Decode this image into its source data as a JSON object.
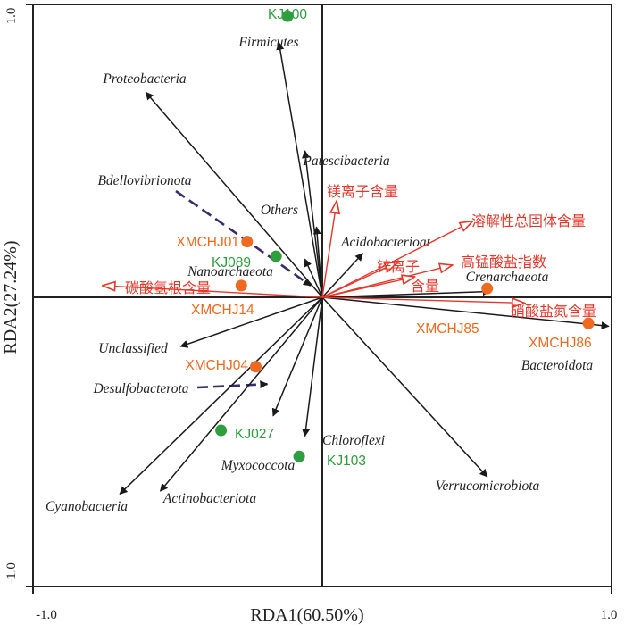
{
  "chart_data": {
    "type": "scatter",
    "subtype": "rda-biplot",
    "xlabel": "RDA1(60.50%)",
    "ylabel": "RDA2(27.24%)",
    "xlim": [
      -1.0,
      1.0
    ],
    "ylim": [
      -1.0,
      1.0
    ],
    "x_ticks": [
      "-1.0",
      "1.0"
    ],
    "y_ticks": [
      "1.0",
      "-1.0"
    ],
    "zero_lines": true,
    "colors": {
      "taxa_arrow": "#1a1a1a",
      "env_arrow": "#e8372a",
      "group_green": "#2e9e3e",
      "group_orange": "#ef6a1f",
      "dashed": "#3a2a6e"
    },
    "taxa": [
      {
        "label": "Firmicutes",
        "x": -0.15,
        "y": 0.87
      },
      {
        "label": "Proteobacteria",
        "x": -0.61,
        "y": 0.7
      },
      {
        "label": "Patescibacteria",
        "x": -0.06,
        "y": 0.5
      },
      {
        "label": "Bdellovibrionota",
        "x": -0.04,
        "y": 0.04,
        "dashed": true
      },
      {
        "label": "Others",
        "x": -0.02,
        "y": 0.24
      },
      {
        "label": "Acidobacterioat",
        "x": 0.14,
        "y": 0.15
      },
      {
        "label": "Nanoarchaeota",
        "x": -0.06,
        "y": 0.13
      },
      {
        "label": "Crenarchaeota",
        "x": 0.58,
        "y": 0.02
      },
      {
        "label": "Bacteroidota",
        "x": 0.99,
        "y": -0.1
      },
      {
        "label": "Unclassified",
        "x": -0.49,
        "y": -0.17
      },
      {
        "label": "Desulfobacterota",
        "x": -0.19,
        "y": -0.3,
        "dashed": true
      },
      {
        "label": "Chloroflexi",
        "x": -0.06,
        "y": -0.48
      },
      {
        "label": "Myxococcota",
        "x": -0.17,
        "y": -0.41
      },
      {
        "label": "Verrucomicrobiota",
        "x": 0.57,
        "y": -0.62
      },
      {
        "label": "Cyanobacteria",
        "x": -0.7,
        "y": -0.68
      },
      {
        "label": "Actinobacteriota",
        "x": -0.56,
        "y": -0.67
      }
    ],
    "environment": [
      {
        "label": "镁离子含量",
        "x": 0.05,
        "y": 0.33
      },
      {
        "label": "溶解性总固体含量",
        "x": 0.52,
        "y": 0.26
      },
      {
        "label": "锌离子",
        "x": 0.26,
        "y": 0.12
      },
      {
        "label": "高锰酸盐指数",
        "x": 0.45,
        "y": 0.11
      },
      {
        "label": "含量",
        "x": 0.32,
        "y": 0.07
      },
      {
        "label": "硝酸盐氮含量",
        "x": 0.7,
        "y": -0.02
      },
      {
        "label": "碳酸氢根含量",
        "x": -0.76,
        "y": 0.04
      }
    ],
    "samples": [
      {
        "label": "KJ100",
        "x": -0.12,
        "y": 0.96,
        "group": "green"
      },
      {
        "label": "KJ089",
        "x": -0.16,
        "y": 0.14,
        "group": "green"
      },
      {
        "label": "KJ027",
        "x": -0.35,
        "y": -0.46,
        "group": "green"
      },
      {
        "label": "KJ103",
        "x": -0.08,
        "y": -0.55,
        "group": "green"
      },
      {
        "label": "XMCHJ01",
        "x": -0.26,
        "y": 0.19,
        "group": "orange"
      },
      {
        "label": "XMCHJ14",
        "x": -0.28,
        "y": 0.04,
        "group": "orange"
      },
      {
        "label": "XMCHJ04",
        "x": -0.23,
        "y": -0.24,
        "group": "orange"
      },
      {
        "label": "XMCHJ85",
        "x": 0.57,
        "y": 0.03,
        "group": "orange"
      },
      {
        "label": "XMCHJ86",
        "x": 0.92,
        "y": -0.09,
        "group": "orange"
      }
    ]
  }
}
